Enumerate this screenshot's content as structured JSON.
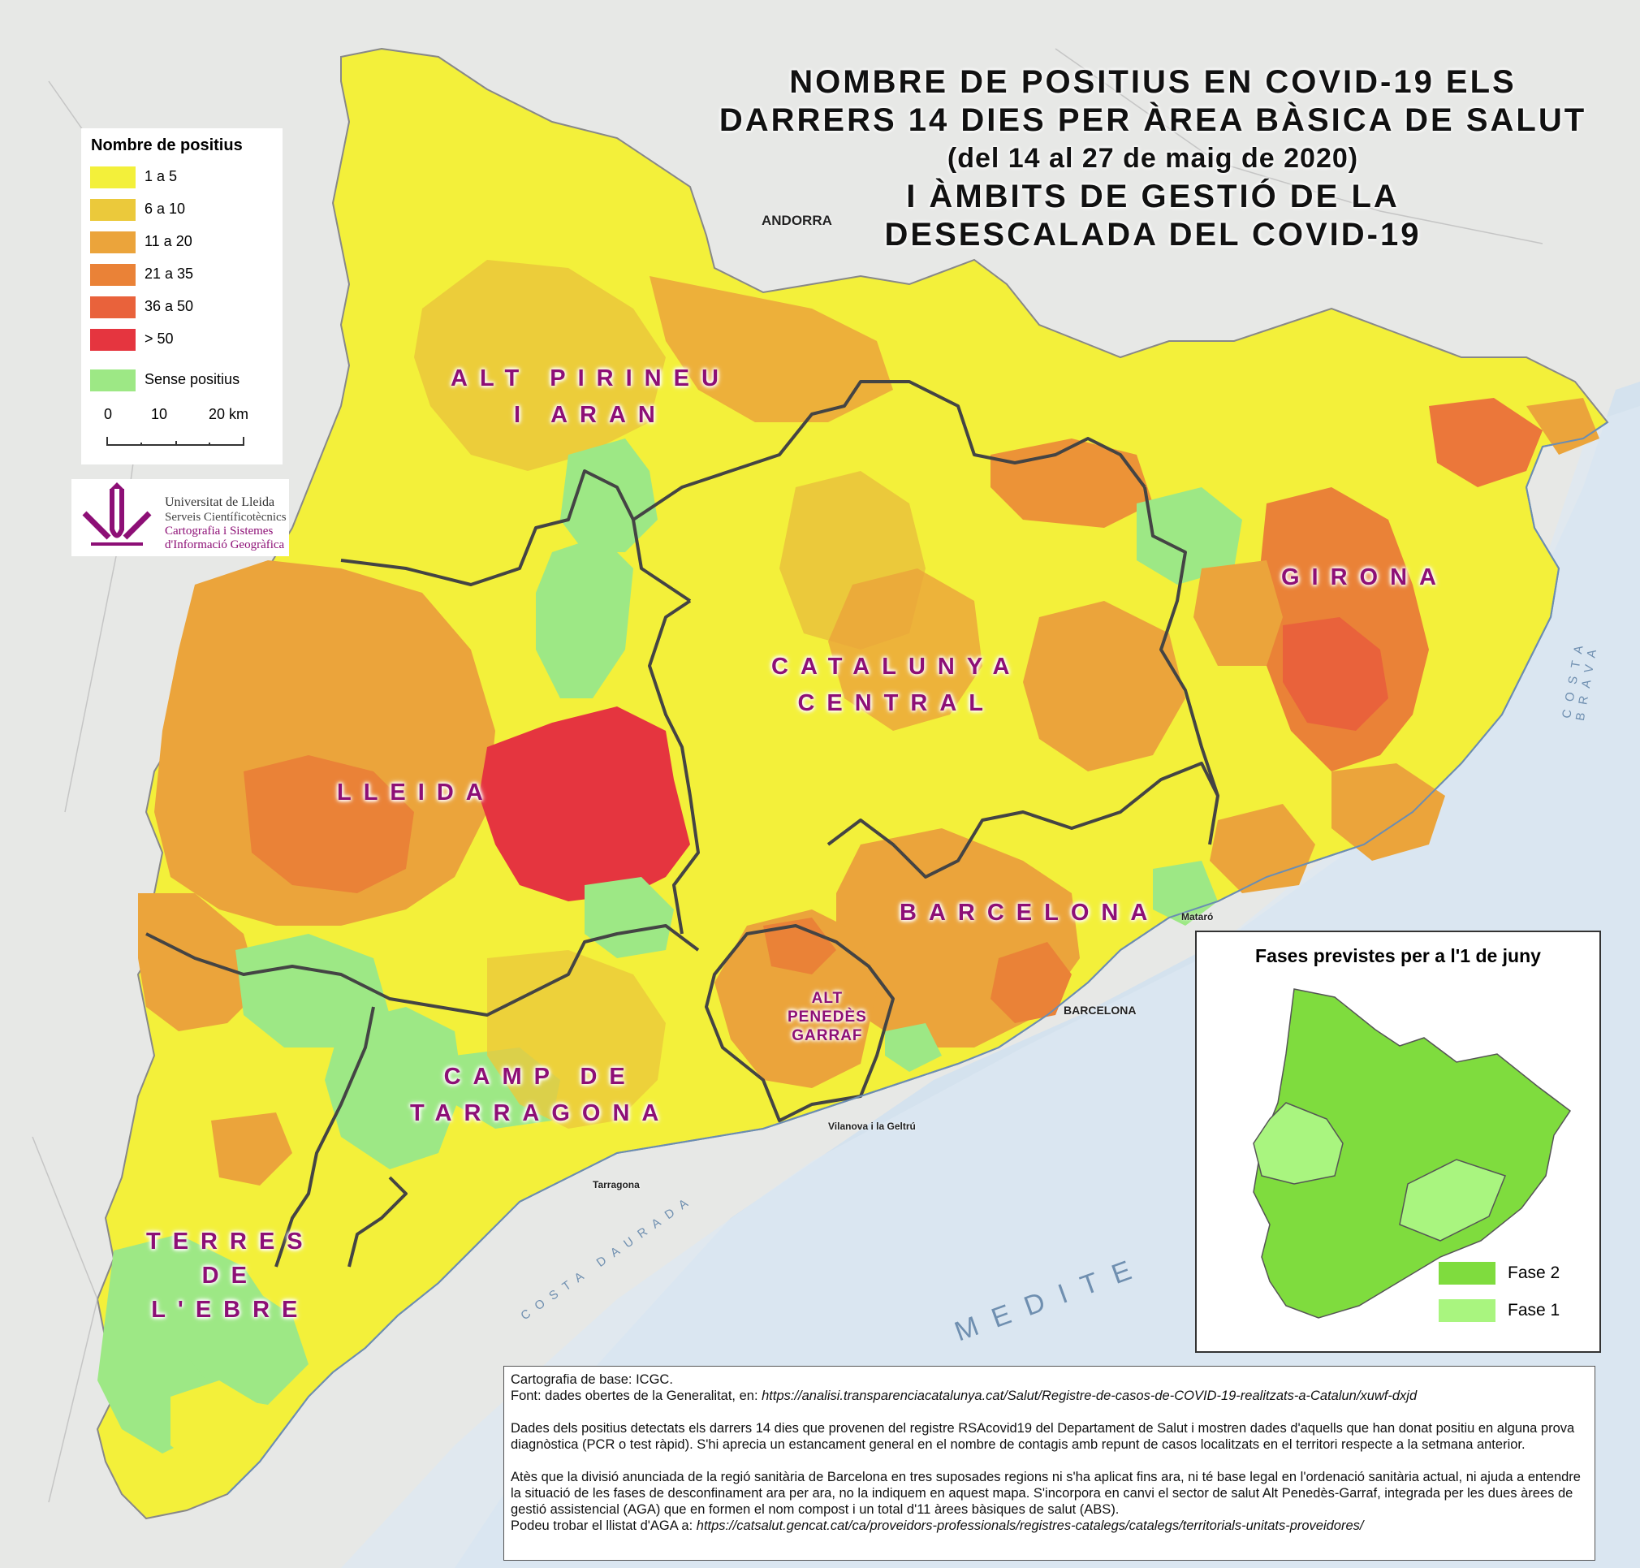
{
  "title": {
    "line1": "NOMBRE DE POSITIUS EN COVID-19 ELS",
    "line2": "DARRERS 14 DIES PER ÀREA BÀSICA DE SALUT",
    "line3": "(del 14 al 27 de maig de 2020)",
    "line4": "I ÀMBITS DE GESTIÓ DE LA",
    "line5": "DESESCALADA DEL COVID-19"
  },
  "legend": {
    "title": "Nombre de positius",
    "items": [
      {
        "label": "1 a 5",
        "color": "#f3f03a"
      },
      {
        "label": "6 a 10",
        "color": "#ebc93b"
      },
      {
        "label": "11 a 20",
        "color": "#eba43b"
      },
      {
        "label": "21 a 35",
        "color": "#ea8237"
      },
      {
        "label": "36 a 50",
        "color": "#e9623b"
      },
      {
        "label": "> 50",
        "color": "#e5353f"
      },
      {
        "label": "Sense positius",
        "color": "#9de885"
      }
    ],
    "scale": {
      "t0": "0",
      "t1": "10",
      "t2": "20 km"
    }
  },
  "logo": {
    "line1": "Universitat de Lleida",
    "line2": "Serveis Científicotècnics",
    "line3": "Cartografia i Sistemes",
    "line4": "d'Informació Geogràfica"
  },
  "regions": {
    "alt_pirineu_1": "ALT PIRINEU",
    "alt_pirineu_2": "I ARAN",
    "catalunya_central_1": "CATALUNYA",
    "catalunya_central_2": "CENTRAL",
    "lleida": "LLEIDA",
    "girona": "GIRONA",
    "barcelona": "BARCELONA",
    "penedes_1": "ALT",
    "penedes_2": "PENEDÈS",
    "penedes_3": "GARRAF",
    "camp_1": "CAMP DE",
    "camp_2": "TARRAGONA",
    "ebre_1": "TERRES",
    "ebre_2": "DE",
    "ebre_3": "L'EBRE"
  },
  "place_labels": {
    "andorra": "ANDORRA",
    "barcelona": "BARCELONA",
    "tarragona": "Tarragona",
    "mataro": "Mataró",
    "vilanova": "Vilanova i la Geltrú",
    "costa_daurada": "COSTA DAURADA",
    "costa_brava": "COSTA BRAVA",
    "mediterrani": "MEDITE"
  },
  "inset": {
    "title": "Fases previstes per a l'1 de juny",
    "items": [
      {
        "label": "Fase 2",
        "color": "#7fdc3e"
      },
      {
        "label": "Fase 1",
        "color": "#a9f57f"
      }
    ]
  },
  "notes": {
    "l1": "Cartografia de base: ICGC.",
    "l2": "Font: dades obertes de la Generalitat, en: ",
    "l2_url": "https://analisi.transparenciacatalunya.cat/Salut/Registre-de-casos-de-COVID-19-realitzats-a-Catalun/xuwf-dxjd",
    "p2": "Dades dels positius detectats els darrers 14 dies que provenen del registre RSAcovid19 del Departament de Salut i mostren dades d'aquells que han donat positiu en alguna prova diagnòstica (PCR o test ràpid). S'hi aprecia un estancament general en el nombre de contagis amb repunt de casos localitzats en el territori respecte a la setmana anterior.",
    "p3": "Atès que la divisió anunciada de la regió sanitària de Barcelona en tres suposades regions ni s'ha aplicat fins ara, ni té base legal en l'ordenació sanitària actual, ni ajuda a entendre la situació de les fases de desconfinament ara per ara, no la indiquem en aquest mapa. S'incorpora en canvi el sector de salut Alt Penedès-Garraf, integrada per les dues àrees de gestió assistencial (AGA) que en formen el nom compost i un total d'11 àrees bàsiques de salut (ABS).",
    "l_last": "Podeu trobar el llistat d'AGA a: ",
    "l_last_url": "https://catsalut.gencat.cat/ca/proveidors-professionals/registres-catalegs/catalegs/territorials-unitats-proveidores/"
  }
}
